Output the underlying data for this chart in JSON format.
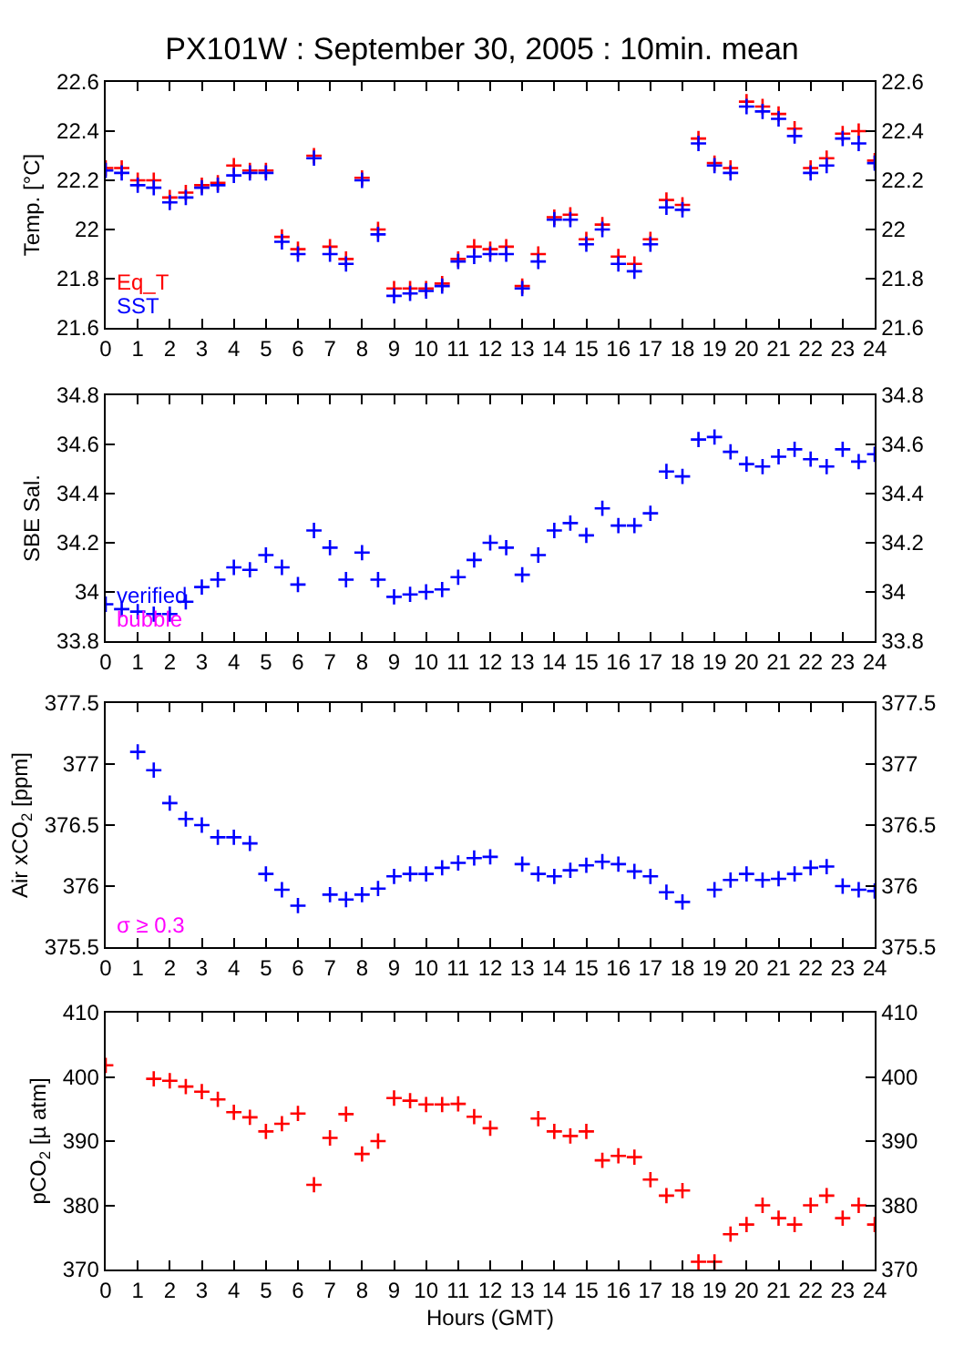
{
  "chart_data": [
    {
      "type": "scatter",
      "title": "PX101W : September 30, 2005 : 10min. mean",
      "ylabel": "Temp. [°C]",
      "marker": "cross",
      "legend": "bottom left",
      "x": [
        0,
        0.5,
        1,
        1.5,
        2,
        2.5,
        3,
        3.5,
        4,
        4.5,
        5,
        5.5,
        6,
        6.5,
        7,
        7.5,
        8,
        8.5,
        9,
        9.5,
        10,
        10.5,
        11,
        11.5,
        12,
        12.5,
        13,
        13.5,
        14,
        14.5,
        15,
        15.5,
        16,
        16.5,
        17,
        17.5,
        18,
        18.5,
        19,
        19.5,
        20,
        20.5,
        21,
        21.5,
        22,
        22.5,
        23,
        23.5,
        24
      ],
      "xlim": [
        0,
        24
      ],
      "xticks": [
        0,
        1,
        2,
        3,
        4,
        5,
        6,
        7,
        8,
        9,
        10,
        11,
        12,
        13,
        14,
        15,
        16,
        17,
        18,
        19,
        20,
        21,
        22,
        23,
        24
      ],
      "ylim": [
        21.6,
        22.6
      ],
      "yticks": [
        21.6,
        21.8,
        22,
        22.2,
        22.4,
        22.6
      ],
      "y2lim": [
        21.6,
        22.6
      ],
      "y2ticks": [
        21.6,
        21.8,
        22,
        22.2,
        22.4,
        22.6
      ],
      "series": [
        {
          "name": "Eq_T",
          "color": "#ff0000",
          "values": [
            22.25,
            22.25,
            22.2,
            22.2,
            22.13,
            22.15,
            22.18,
            22.19,
            22.26,
            22.24,
            22.24,
            21.97,
            21.92,
            22.3,
            21.93,
            21.88,
            22.21,
            22.0,
            21.76,
            21.76,
            21.76,
            21.78,
            21.88,
            21.93,
            21.92,
            21.93,
            21.77,
            21.9,
            22.05,
            22.06,
            21.96,
            22.02,
            21.89,
            21.86,
            21.96,
            22.12,
            22.1,
            22.37,
            22.27,
            22.25,
            22.52,
            22.5,
            22.47,
            22.41,
            22.25,
            22.29,
            22.39,
            22.4,
            22.28
          ]
        },
        {
          "name": "SST",
          "color": "#0000ff",
          "values": [
            22.24,
            22.23,
            22.18,
            22.17,
            22.11,
            22.13,
            22.17,
            22.18,
            22.22,
            22.23,
            22.23,
            21.95,
            21.9,
            22.29,
            21.9,
            21.86,
            22.2,
            21.98,
            21.73,
            21.74,
            21.75,
            21.77,
            21.87,
            21.89,
            21.9,
            21.9,
            21.76,
            21.87,
            22.04,
            22.04,
            21.94,
            22.0,
            21.86,
            21.83,
            21.94,
            22.09,
            22.08,
            22.35,
            22.26,
            22.23,
            22.5,
            22.48,
            22.45,
            22.38,
            22.23,
            22.26,
            22.37,
            22.35,
            22.27
          ]
        }
      ]
    },
    {
      "type": "scatter",
      "ylabel": "SBE Sal.",
      "marker": "cross",
      "legend": "bottom left",
      "annotations": [
        "bubble"
      ],
      "x": [
        0,
        0.5,
        1,
        1.5,
        2,
        2.5,
        3,
        3.5,
        4,
        4.5,
        5,
        5.5,
        6,
        6.5,
        7,
        7.5,
        8,
        8.5,
        9,
        9.5,
        10,
        10.5,
        11,
        11.5,
        12,
        12.5,
        13,
        13.5,
        14,
        14.5,
        15,
        15.5,
        16,
        16.5,
        17,
        17.5,
        18,
        18.5,
        19,
        19.5,
        20,
        20.5,
        21,
        21.5,
        22,
        22.5,
        23,
        23.5,
        24
      ],
      "xlim": [
        0,
        24
      ],
      "xticks": [
        0,
        1,
        2,
        3,
        4,
        5,
        6,
        7,
        8,
        9,
        10,
        11,
        12,
        13,
        14,
        15,
        16,
        17,
        18,
        19,
        20,
        21,
        22,
        23,
        24
      ],
      "ylim": [
        33.8,
        34.8
      ],
      "yticks": [
        33.8,
        34,
        34.2,
        34.4,
        34.6,
        34.8
      ],
      "y2lim": [
        33.8,
        34.8
      ],
      "y2ticks": [
        33.8,
        34,
        34.2,
        34.4,
        34.6,
        34.8
      ],
      "series": [
        {
          "name": "verified",
          "color": "#0000ff",
          "values": [
            33.95,
            33.93,
            33.92,
            33.91,
            33.91,
            33.96,
            34.02,
            34.05,
            34.1,
            34.09,
            34.15,
            34.1,
            34.03,
            34.25,
            34.18,
            34.05,
            34.16,
            34.05,
            33.98,
            33.99,
            34.0,
            34.01,
            34.06,
            34.13,
            34.2,
            34.18,
            34.07,
            34.15,
            34.25,
            34.28,
            34.23,
            34.34,
            34.27,
            34.27,
            34.32,
            34.49,
            34.47,
            34.62,
            34.63,
            34.57,
            34.52,
            34.51,
            34.55,
            34.58,
            34.54,
            34.51,
            34.58,
            34.53,
            34.56
          ]
        }
      ]
    },
    {
      "type": "scatter",
      "ylabel": "Air xCO$_{2}$ [ppm]",
      "marker": "cross",
      "annotations": [
        "σ ≥ 0.3"
      ],
      "x": [
        1,
        1.5,
        2,
        2.5,
        3,
        3.5,
        4,
        4.5,
        5,
        5.5,
        6,
        6.5,
        7,
        7.5,
        8,
        8.5,
        9,
        9.5,
        10,
        10.5,
        11,
        11.5,
        12,
        12.5,
        13,
        13.5,
        14,
        14.5,
        15,
        15.5,
        16,
        16.5,
        17,
        17.5,
        18,
        18.5,
        19,
        19.5,
        20,
        20.5,
        21,
        21.5,
        22,
        22.5,
        23,
        23.5,
        24
      ],
      "xlim": [
        0,
        24
      ],
      "xticks": [
        0,
        1,
        2,
        3,
        4,
        5,
        6,
        7,
        8,
        9,
        10,
        11,
        12,
        13,
        14,
        15,
        16,
        17,
        18,
        19,
        20,
        21,
        22,
        23,
        24
      ],
      "ylim": [
        375.5,
        377.5
      ],
      "yticks": [
        375.5,
        376,
        376.5,
        377,
        377.5
      ],
      "y2lim": [
        375.5,
        377.5
      ],
      "y2ticks": [
        375.5,
        376,
        376.5,
        377,
        377.5
      ],
      "series": [
        {
          "color": "#0000ff",
          "values": [
            377.1,
            376.95,
            376.68,
            376.55,
            376.5,
            376.4,
            376.4,
            376.35,
            376.1,
            375.97,
            375.84,
            null,
            375.93,
            375.89,
            375.93,
            375.98,
            376.08,
            376.1,
            376.1,
            376.15,
            376.19,
            376.23,
            376.24,
            null,
            376.18,
            376.1,
            376.08,
            376.13,
            376.17,
            376.2,
            376.18,
            376.12,
            376.08,
            375.95,
            375.87,
            null,
            375.97,
            376.05,
            376.1,
            376.05,
            376.06,
            376.1,
            376.15,
            376.16,
            376.0,
            375.97,
            375.96
          ]
        }
      ]
    },
    {
      "type": "scatter",
      "ylabel": "pCO$_{2}$ [µ atm]",
      "xlabel": "Hours (GMT)",
      "marker": "cross",
      "x": [
        0,
        0.5,
        1,
        1.5,
        2,
        2.5,
        3,
        3.5,
        4,
        4.5,
        5,
        5.5,
        6,
        6.5,
        7,
        7.5,
        8,
        8.5,
        9,
        9.5,
        10,
        10.5,
        11,
        11.5,
        12,
        12.5,
        13,
        13.5,
        14,
        14.5,
        15,
        15.5,
        16,
        16.5,
        17,
        17.5,
        18,
        18.5,
        19,
        19.5,
        20,
        20.5,
        21,
        21.5,
        22,
        22.5,
        23,
        23.5,
        24
      ],
      "xlim": [
        0,
        24
      ],
      "xticks": [
        0,
        1,
        2,
        3,
        4,
        5,
        6,
        7,
        8,
        9,
        10,
        11,
        12,
        13,
        14,
        15,
        16,
        17,
        18,
        19,
        20,
        21,
        22,
        23,
        24
      ],
      "ylim": [
        370,
        410
      ],
      "yticks": [
        370,
        380,
        390,
        400,
        410
      ],
      "y2lim": [
        370,
        410
      ],
      "y2ticks": [
        370,
        380,
        390,
        400,
        410
      ],
      "series": [
        {
          "color": "#ff0000",
          "values": [
            401.8,
            null,
            null,
            399.7,
            399.4,
            398.5,
            397.7,
            396.5,
            394.5,
            393.7,
            391.5,
            392.7,
            394.3,
            383.2,
            390.5,
            394.2,
            388,
            390,
            396.7,
            396.3,
            395.7,
            395.7,
            395.8,
            393.8,
            392,
            null,
            null,
            393.5,
            391.5,
            390.8,
            391.5,
            387,
            387.7,
            387.5,
            384,
            381.5,
            382.3,
            371.2,
            371.2,
            375.5,
            377,
            380,
            378,
            377,
            380,
            381.5,
            378,
            380,
            377
          ]
        }
      ]
    }
  ]
}
